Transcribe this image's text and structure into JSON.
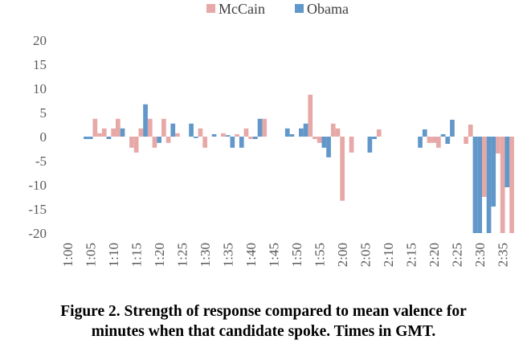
{
  "chart_data": {
    "type": "bar",
    "title": "",
    "caption": [
      "Figure 2. Strength of response compared to mean valence for",
      "minutes when that candidate spoke. Times in GMT."
    ],
    "xlabel": "",
    "ylabel": "",
    "ylim": [
      -20,
      20
    ],
    "yticks": [
      20,
      15,
      10,
      5,
      0,
      -5,
      -10,
      -15,
      -20
    ],
    "xticks": [
      "1:00",
      "1:05",
      "1:10",
      "1:15",
      "1:20",
      "1:25",
      "1:30",
      "1:35",
      "1:40",
      "1:45",
      "1:50",
      "1:55",
      "2:00",
      "2:05",
      "2:10",
      "2:15",
      "2:20",
      "2:25",
      "2:30",
      "2:35"
    ],
    "grid": false,
    "legend": "top",
    "series": [
      {
        "name": "McCain",
        "color": "#e6a9a8",
        "points": [
          [
            "1:05",
            3.7
          ],
          [
            "1:06",
            0.7
          ],
          [
            "1:07",
            1.7
          ],
          [
            "1:09",
            1.7
          ],
          [
            "1:10",
            3.7
          ],
          [
            "1:13",
            -2.3
          ],
          [
            "1:14",
            -3.3
          ],
          [
            "1:15",
            1.7
          ],
          [
            "1:17",
            3.7
          ],
          [
            "1:18",
            -2.3
          ],
          [
            "1:20",
            3.7
          ],
          [
            "1:21",
            -1.3
          ],
          [
            "1:23",
            0.7
          ],
          [
            "1:28",
            1.7
          ],
          [
            "1:29",
            -2.3
          ],
          [
            "1:33",
            0.7
          ],
          [
            "1:36",
            0.5
          ],
          [
            "1:38",
            1.7
          ],
          [
            "1:39",
            -0.5
          ],
          [
            "1:42",
            3.7
          ],
          [
            "1:52",
            8.7
          ],
          [
            "1:53",
            -0.5
          ],
          [
            "1:54",
            -1.3
          ],
          [
            "1:57",
            2.7
          ],
          [
            "1:58",
            1.7
          ],
          [
            "1:59",
            -13.3
          ],
          [
            "2:01",
            -3.3
          ],
          [
            "2:07",
            1.5
          ],
          [
            "2:18",
            -1.3
          ],
          [
            "2:19",
            -1.3
          ],
          [
            "2:20",
            -2.3
          ],
          [
            "2:26",
            -1.5
          ],
          [
            "2:27",
            2.5
          ],
          [
            "2:30",
            -12.5
          ],
          [
            "2:33",
            -3.5
          ],
          [
            "2:34",
            -20
          ],
          [
            "2:36",
            -20
          ]
        ]
      },
      {
        "name": "Obama",
        "color": "#6197c9",
        "points": [
          [
            "1:03",
            -0.5
          ],
          [
            "1:04",
            -0.5
          ],
          [
            "1:08",
            -0.5
          ],
          [
            "1:11",
            1.7
          ],
          [
            "1:16",
            6.7
          ],
          [
            "1:19",
            -1.3
          ],
          [
            "1:22",
            2.7
          ],
          [
            "1:26",
            2.7
          ],
          [
            "1:27",
            -0.3
          ],
          [
            "1:31",
            0.5
          ],
          [
            "1:34",
            0.3
          ],
          [
            "1:35",
            -2.3
          ],
          [
            "1:37",
            -2.3
          ],
          [
            "1:40",
            -0.5
          ],
          [
            "1:41",
            3.7
          ],
          [
            "1:47",
            1.7
          ],
          [
            "1:48",
            0.5
          ],
          [
            "1:50",
            1.7
          ],
          [
            "1:51",
            2.7
          ],
          [
            "1:55",
            -2.3
          ],
          [
            "1:56",
            -4.3
          ],
          [
            "2:05",
            -3.3
          ],
          [
            "2:06",
            -0.5
          ],
          [
            "2:16",
            -2.3
          ],
          [
            "2:17",
            1.5
          ],
          [
            "2:21",
            0.5
          ],
          [
            "2:22",
            -1.5
          ],
          [
            "2:23",
            3.5
          ],
          [
            "2:28",
            -20
          ],
          [
            "2:29",
            -20
          ],
          [
            "2:31",
            -20
          ],
          [
            "2:32",
            -14.5
          ],
          [
            "2:35",
            -10.5
          ]
        ]
      }
    ]
  }
}
